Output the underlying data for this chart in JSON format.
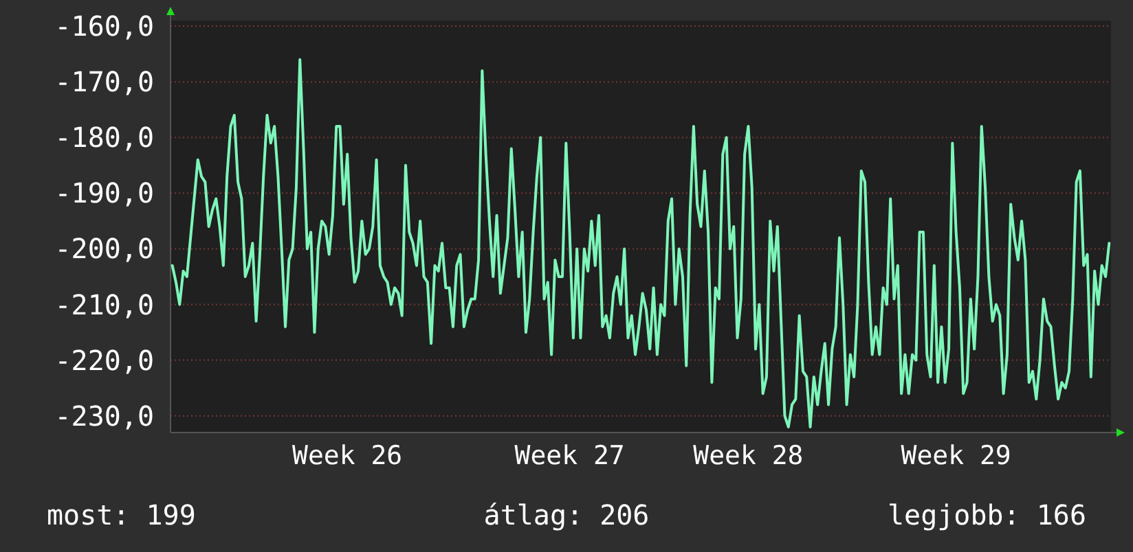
{
  "chart_data": {
    "type": "line",
    "categories": [
      null,
      null,
      null,
      null,
      null,
      null,
      null,
      null,
      null,
      null,
      null,
      null,
      null,
      null,
      null,
      null,
      null,
      null,
      null,
      null,
      null,
      null,
      null,
      null,
      null,
      null,
      null,
      null,
      null,
      null,
      null,
      null,
      null,
      null,
      null,
      null,
      null,
      null,
      null,
      null,
      null,
      null,
      null,
      null,
      null,
      null,
      null,
      null,
      "Week 26",
      null,
      null,
      null,
      null,
      null,
      null,
      null,
      null,
      null,
      null,
      null,
      null,
      null,
      null,
      null,
      null,
      null,
      null,
      null,
      null,
      null,
      null,
      null,
      null,
      null,
      null,
      null,
      null,
      null,
      null,
      null,
      null,
      null,
      null,
      null,
      null,
      null,
      null,
      null,
      null,
      null,
      null,
      null,
      null,
      null,
      null,
      null,
      null,
      null,
      null,
      null,
      null,
      null,
      null,
      null,
      null,
      null,
      null,
      null,
      null,
      "Week 27",
      null,
      null,
      null,
      null,
      null,
      null,
      null,
      null,
      null,
      null,
      null,
      null,
      null,
      null,
      null,
      null,
      null,
      null,
      null,
      null,
      null,
      null,
      null,
      null,
      null,
      null,
      null,
      null,
      null,
      null,
      null,
      null,
      null,
      null,
      null,
      null,
      null,
      null,
      null,
      null,
      null,
      null,
      null,
      null,
      null,
      null,
      null,
      null,
      "Week 28",
      null,
      null,
      null,
      null,
      null,
      null,
      null,
      null,
      null,
      null,
      null,
      null,
      null,
      null,
      null,
      null,
      null,
      null,
      null,
      null,
      null,
      null,
      null,
      null,
      null,
      null,
      null,
      null,
      null,
      null,
      null,
      null,
      null,
      null,
      null,
      null,
      null,
      null,
      null,
      null,
      null,
      null,
      null,
      null,
      null,
      null,
      null,
      null,
      null,
      null,
      null,
      null,
      null,
      null,
      null,
      null,
      "Week 29",
      null,
      null,
      null,
      null,
      null,
      null,
      null,
      null,
      null,
      null,
      null,
      null,
      null,
      null,
      null,
      null,
      null,
      null,
      null,
      null,
      null,
      null,
      null,
      null,
      null,
      null,
      null,
      null,
      null,
      null,
      null,
      null,
      null,
      null,
      null,
      null,
      null,
      null,
      null,
      null,
      null,
      null
    ],
    "series": [
      {
        "color": "#7df5b9",
        "values": [
          -203,
          -206,
          -210,
          -204,
          -205,
          -198,
          -191,
          -184,
          -187,
          -188,
          -196,
          -193,
          -191,
          -196,
          -203,
          -187,
          -178,
          -176,
          -188,
          -191,
          -205,
          -203,
          -199,
          -213,
          -201,
          -187,
          -176,
          -181,
          -178,
          -187,
          -200,
          -214,
          -202,
          -200,
          -189,
          -166,
          -182,
          -200,
          -197,
          -215,
          -200,
          -195,
          -196,
          -201,
          -194,
          -178,
          -178,
          -192,
          -183,
          -198,
          -206,
          -204,
          -195,
          -201,
          -200,
          -196,
          -184,
          -203,
          -205,
          -206,
          -210,
          -207,
          -208,
          -212,
          -185,
          -197,
          -199,
          -203,
          -195,
          -205,
          -206,
          -217,
          -203,
          -204,
          -199,
          -207,
          -207,
          -214,
          -203,
          -201,
          -214,
          -211,
          -209,
          -209,
          -202,
          -168,
          -183,
          -195,
          -205,
          -194,
          -208,
          -203,
          -198,
          -182,
          -193,
          -205,
          -197,
          -215,
          -209,
          -197,
          -187,
          -180,
          -209,
          -206,
          -219,
          -202,
          -205,
          -205,
          -181,
          -197,
          -216,
          -200,
          -216,
          -200,
          -204,
          -195,
          -203,
          -194,
          -214,
          -212,
          -216,
          -208,
          -205,
          -210,
          -200,
          -216,
          -212,
          -219,
          -214,
          -208,
          -211,
          -218,
          -207,
          -219,
          -210,
          -212,
          -195,
          -191,
          -210,
          -200,
          -205,
          -221,
          -194,
          -178,
          -192,
          -196,
          -186,
          -197,
          -224,
          -207,
          -209,
          -183,
          -180,
          -200,
          -196,
          -216,
          -209,
          -183,
          -178,
          -189,
          -218,
          -210,
          -226,
          -223,
          -195,
          -204,
          -196,
          -213,
          -230,
          -232,
          -228,
          -227,
          -212,
          -222,
          -223,
          -232,
          -223,
          -228,
          -222,
          -217,
          -228,
          -218,
          -214,
          -198,
          -210,
          -228,
          -219,
          -223,
          -210,
          -186,
          -188,
          -206,
          -219,
          -214,
          -219,
          -207,
          -210,
          -191,
          -209,
          -203,
          -226,
          -219,
          -226,
          -219,
          -220,
          -197,
          -197,
          -219,
          -223,
          -203,
          -224,
          -214,
          -224,
          -218,
          -181,
          -197,
          -207,
          -226,
          -224,
          -209,
          -218,
          -205,
          -178,
          -189,
          -205,
          -213,
          -210,
          -212,
          -226,
          -219,
          -192,
          -198,
          -202,
          -195,
          -202,
          -224,
          -222,
          -227,
          -220,
          -209,
          -213,
          -214,
          -221,
          -227,
          -224,
          -225,
          -222,
          -209,
          -188,
          -186,
          -203,
          -201,
          -223,
          -204,
          -210,
          -203,
          -205,
          -199
        ]
      }
    ],
    "ylim": [
      -233,
      -159
    ],
    "yticks": [
      {
        "value": -160,
        "label": "-160,0"
      },
      {
        "value": -170,
        "label": "-170,0"
      },
      {
        "value": -180,
        "label": "-180,0"
      },
      {
        "value": -190,
        "label": "-190,0"
      },
      {
        "value": -200,
        "label": "-200,0"
      },
      {
        "value": -210,
        "label": "-210,0"
      },
      {
        "value": -220,
        "label": "-220,0"
      },
      {
        "value": -230,
        "label": "-230,0"
      }
    ],
    "grid": "y",
    "marker": "none",
    "line_style": "solid",
    "annotations": [
      "most: 199",
      "átlag: 206",
      "legjobb: 166"
    ]
  }
}
